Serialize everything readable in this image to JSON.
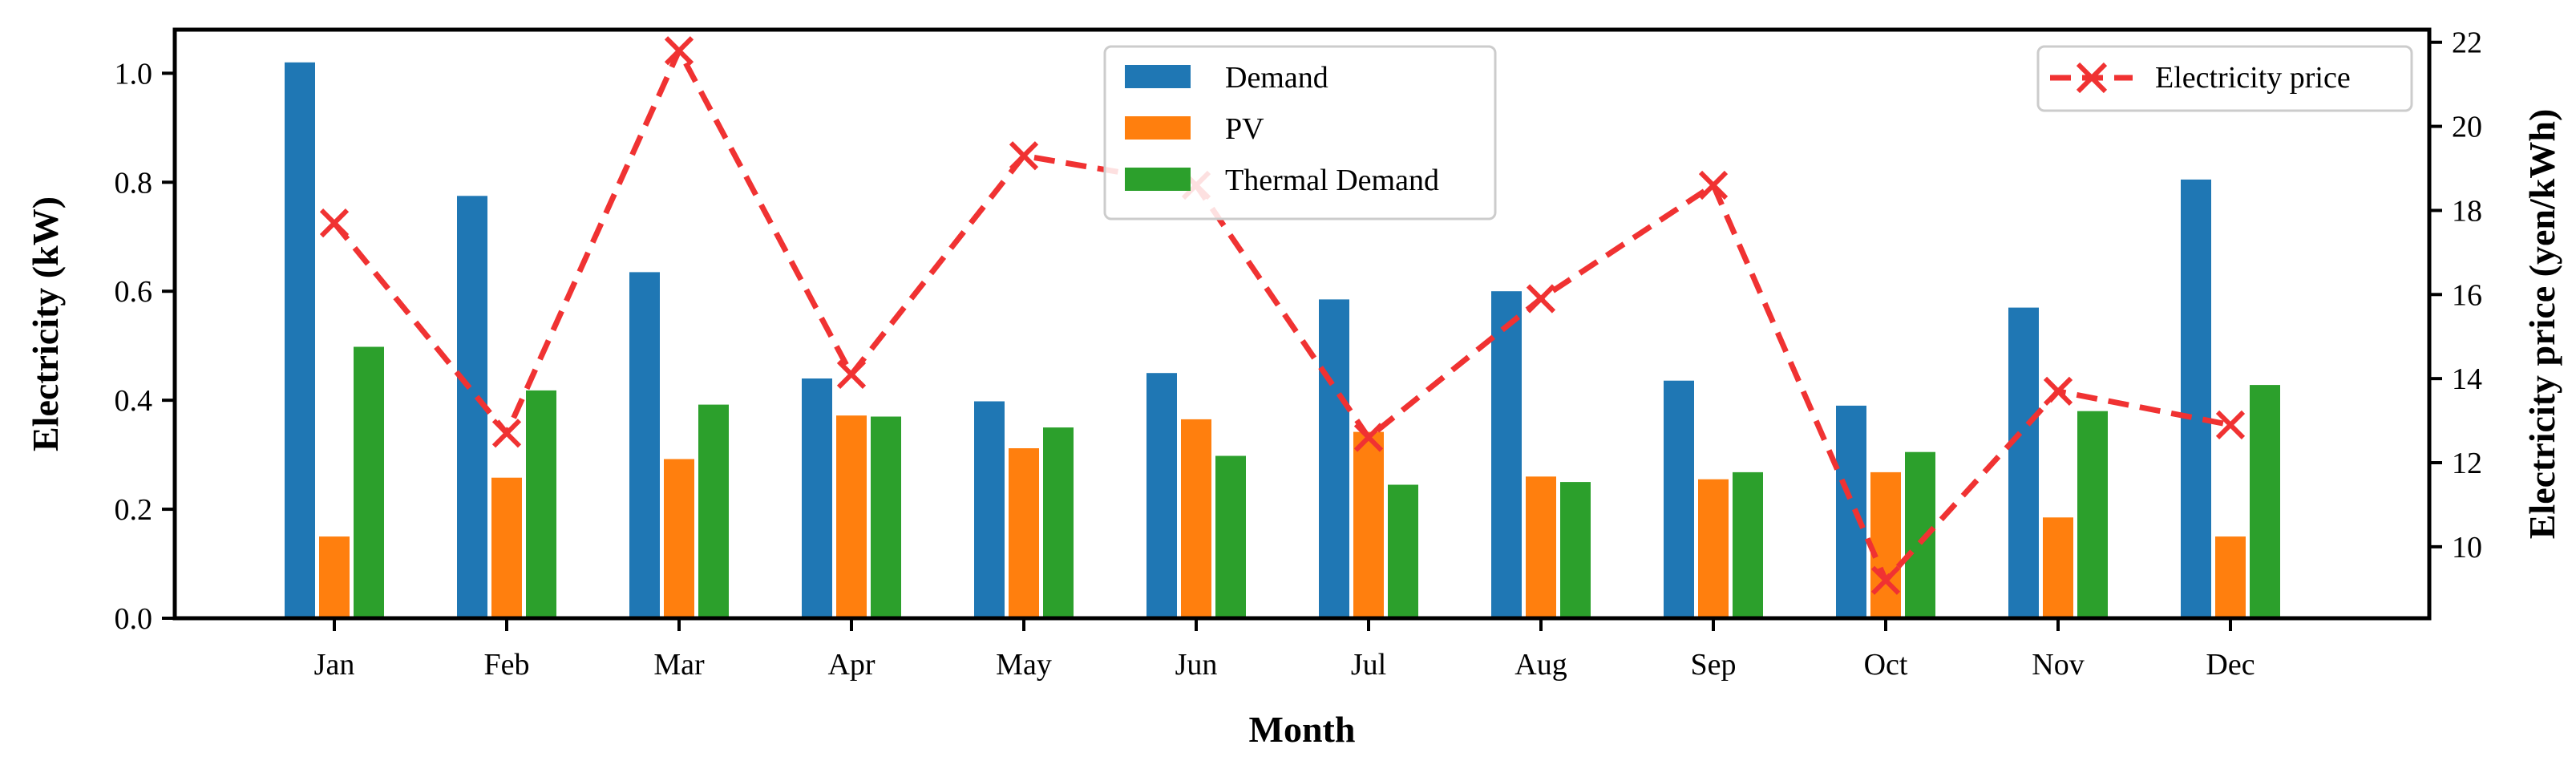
{
  "chart_data": {
    "type": "bar",
    "categories": [
      "Jan",
      "Feb",
      "Mar",
      "Apr",
      "May",
      "Jun",
      "Jul",
      "Aug",
      "Sep",
      "Oct",
      "Nov",
      "Dec"
    ],
    "series": [
      {
        "name": "Demand",
        "axis": "left",
        "kind": "bar",
        "color": "#1f77b4",
        "values": [
          1.02,
          0.775,
          0.635,
          0.44,
          0.398,
          0.45,
          0.585,
          0.6,
          0.436,
          0.39,
          0.57,
          0.805
        ]
      },
      {
        "name": "PV",
        "axis": "left",
        "kind": "bar",
        "color": "#ff7f0e",
        "values": [
          0.15,
          0.258,
          0.292,
          0.372,
          0.312,
          0.365,
          0.342,
          0.26,
          0.255,
          0.268,
          0.185,
          0.15
        ]
      },
      {
        "name": "Thermal Demand",
        "axis": "left",
        "kind": "bar",
        "color": "#2ca02c",
        "values": [
          0.498,
          0.418,
          0.392,
          0.37,
          0.35,
          0.298,
          0.245,
          0.25,
          0.268,
          0.305,
          0.38,
          0.428
        ]
      },
      {
        "name": "Electricity price",
        "axis": "right",
        "kind": "line",
        "color": "#f03232",
        "values": [
          17.7,
          12.7,
          21.8,
          14.1,
          19.3,
          18.6,
          12.6,
          15.9,
          18.6,
          9.2,
          13.7,
          12.9
        ]
      }
    ],
    "xlabel": "Month",
    "ylabel": "Electricity (kW)",
    "y2label": "Electricity price (yen/kWh)",
    "ylim": [
      0.0,
      1.08
    ],
    "y2lim": [
      8.3,
      22.3
    ],
    "yticks": [
      "0.0",
      "0.2",
      "0.4",
      "0.6",
      "0.8",
      "1.0"
    ],
    "y2ticks": [
      "10",
      "12",
      "14",
      "16",
      "18",
      "20",
      "22"
    ],
    "legend_bars_position": "top-center",
    "legend_line_position": "top-right",
    "grid": false
  }
}
